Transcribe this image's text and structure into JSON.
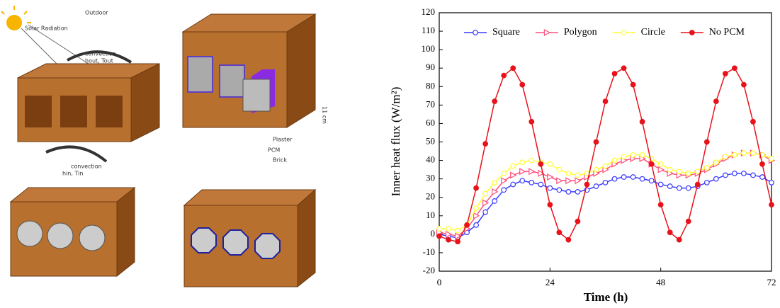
{
  "diagram": {
    "labels": [
      "Outdoor",
      "Solar Radiation",
      "convection",
      "hout, Tout",
      "convection",
      "hin, Tin",
      "Plaster",
      "PCM",
      "Brick",
      "11 cm"
    ]
  },
  "chart_data": {
    "type": "line",
    "x_label": "Time (h)",
    "y_label": "Inner heat flux (W/m²)",
    "x": [
      0,
      2,
      4,
      6,
      8,
      10,
      12,
      14,
      16,
      18,
      20,
      22,
      24,
      26,
      28,
      30,
      32,
      34,
      36,
      38,
      40,
      42,
      44,
      46,
      48,
      50,
      52,
      54,
      56,
      58,
      60,
      62,
      64,
      66,
      68,
      70,
      72
    ],
    "series": [
      {
        "name": "Square",
        "color": "#3a3aff",
        "marker": "circle-open",
        "values": [
          0,
          -1,
          -2,
          1,
          5,
          12,
          18,
          24,
          27,
          29,
          28,
          27,
          25,
          24,
          23,
          23,
          24,
          26,
          28,
          30,
          31,
          31,
          30,
          29,
          27,
          26,
          25,
          25,
          26,
          28,
          30,
          32,
          33,
          33,
          32,
          31,
          28
        ]
      },
      {
        "name": "Polygon",
        "color": "#ff4f7b",
        "marker": "triangle-open",
        "values": [
          1,
          0,
          -1,
          3,
          10,
          17,
          23,
          29,
          32,
          34,
          34,
          33,
          31,
          29,
          29,
          29,
          31,
          33,
          35,
          38,
          40,
          41,
          41,
          38,
          35,
          33,
          32,
          32,
          33,
          35,
          38,
          41,
          43,
          44,
          44,
          43,
          40
        ]
      },
      {
        "name": "Circle",
        "color": "#ffff33",
        "marker": "circle-open",
        "values": [
          3,
          3,
          2,
          5,
          14,
          22,
          28,
          33,
          37,
          39,
          40,
          39,
          38,
          35,
          33,
          32,
          33,
          35,
          37,
          40,
          42,
          43,
          43,
          41,
          38,
          35,
          34,
          33,
          34,
          36,
          39,
          42,
          43,
          44,
          44,
          43,
          41
        ]
      },
      {
        "name": "No PCM",
        "color": "#e8121a",
        "marker": "circle-filled",
        "values": [
          -1,
          -3,
          -4,
          5,
          25,
          49,
          72,
          86,
          90,
          81,
          61,
          38,
          16,
          1,
          -3,
          7,
          27,
          50,
          72,
          87,
          90,
          81,
          61,
          38,
          16,
          1,
          -3,
          7,
          27,
          50,
          72,
          87,
          90,
          81,
          61,
          38,
          16
        ]
      }
    ],
    "xlim": [
      0,
      72
    ],
    "xticks": [
      0,
      24,
      48,
      72
    ],
    "ylim": [
      -20,
      120
    ],
    "yticks": [
      -20,
      -10,
      0,
      10,
      20,
      30,
      40,
      50,
      60,
      70,
      80,
      90,
      100,
      110,
      120
    ],
    "grid": false,
    "legend": "top"
  }
}
